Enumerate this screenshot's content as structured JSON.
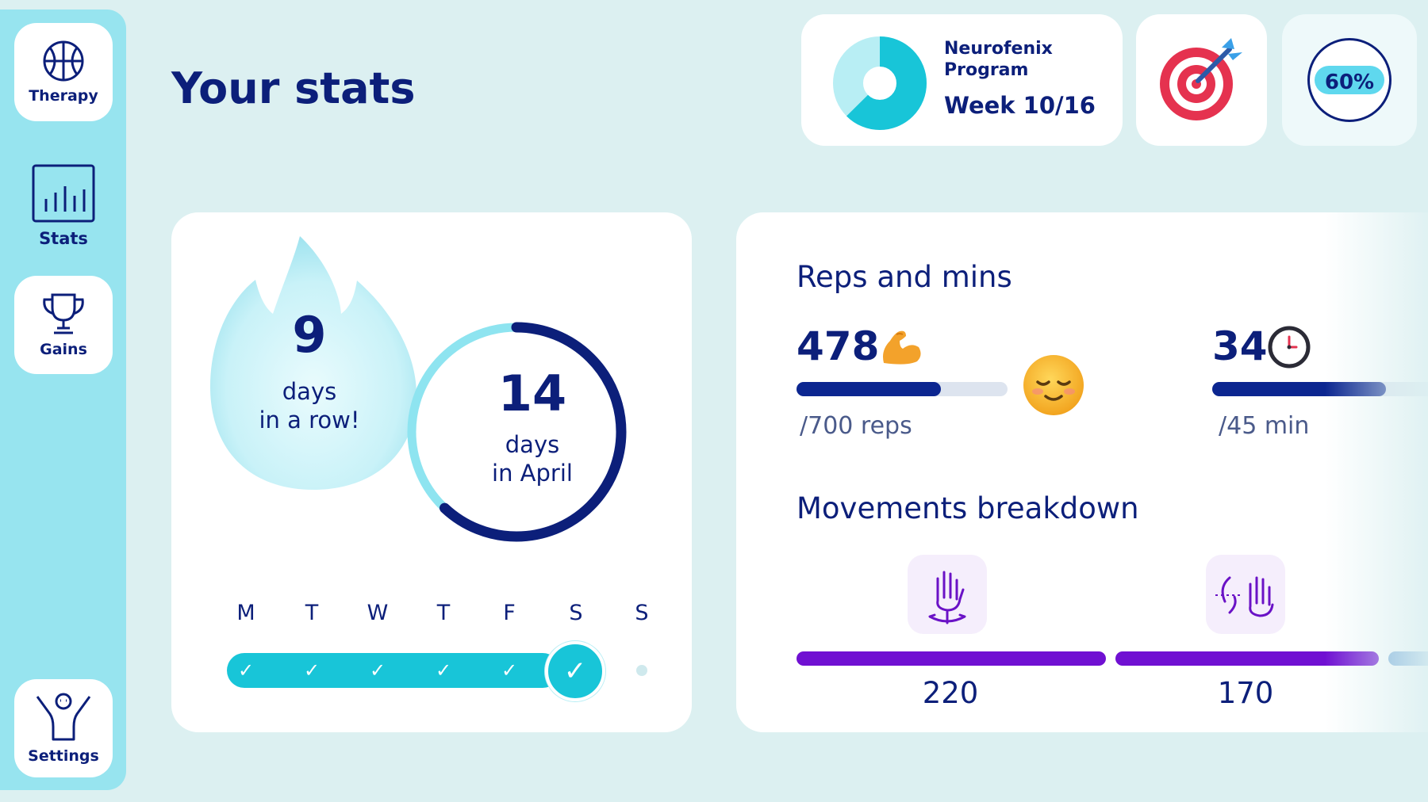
{
  "sidebar": {
    "items": [
      {
        "label": "Therapy",
        "icon": "basketball-icon"
      },
      {
        "label": "Stats",
        "icon": "bar-chart-icon"
      },
      {
        "label": "Gains",
        "icon": "trophy-icon"
      },
      {
        "label": "Settings",
        "icon": "person-cheer-icon"
      }
    ]
  },
  "page": {
    "title": "Your stats"
  },
  "program": {
    "name_line1": "Neurofenix",
    "name_line2": "Program",
    "week": "Week 10/16",
    "progress_fraction": 0.625
  },
  "target": {
    "icon": "target-dart-icon"
  },
  "percent": {
    "label": "60%",
    "value": 0.6
  },
  "streak": {
    "count": "9",
    "line1": "days",
    "line2": "in a row!",
    "month_count": "14",
    "month_line1": "days",
    "month_line2": "in April",
    "month_ring_fraction": 0.62,
    "days": [
      "M",
      "T",
      "W",
      "T",
      "F",
      "S",
      "S"
    ],
    "completed": [
      true,
      true,
      true,
      true,
      true,
      true,
      false
    ],
    "check_glyph": "✓"
  },
  "reps": {
    "title": "Reps and mins",
    "reps_value": "478",
    "reps_goal": "/700 reps",
    "reps_fraction": 0.683,
    "reps_icon": "flexed-biceps-icon",
    "mood_icon": "relieved-face-icon",
    "mins_value": "34",
    "mins_goal": "/45 min",
    "mins_fraction": 0.756,
    "mins_icon": "clock-icon"
  },
  "movements": {
    "title": "Movements breakdown",
    "items": [
      {
        "icon": "hand-rotate-icon",
        "value": "220"
      },
      {
        "icon": "hand-flip-icon",
        "value": "170"
      }
    ]
  },
  "colors": {
    "navy": "#0c1f7a",
    "cyan": "#18c5d8",
    "purple": "#7010d2",
    "sidebar": "#97e4ef"
  }
}
